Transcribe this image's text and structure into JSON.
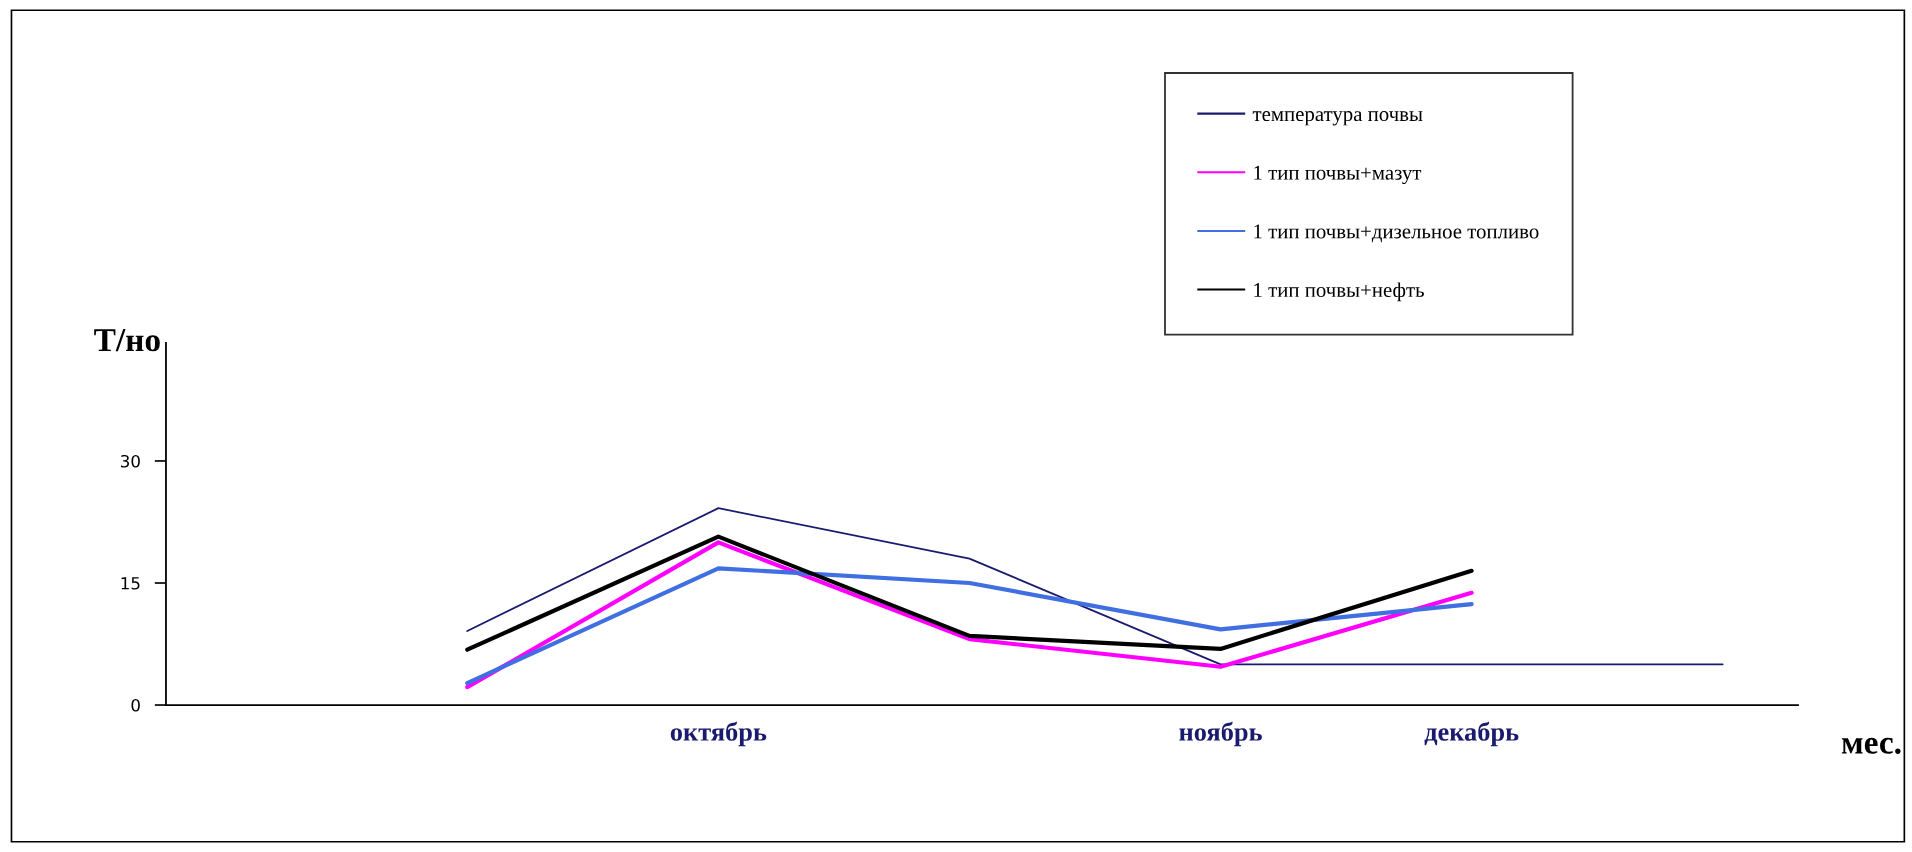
{
  "chart_data": {
    "type": "line",
    "xlabel": "мес.",
    "ylabel": "Т/но",
    "categories": [
      null,
      "октябрь",
      null,
      "ноябрь",
      "декабрь",
      null
    ],
    "ylim": [
      0,
      44.5
    ],
    "yticks": [
      0,
      15,
      30
    ],
    "grid": false,
    "legend": "top right",
    "marker": "none",
    "line_style": "solid",
    "series": [
      {
        "name": "температура почвы",
        "color": "#1a1a6e",
        "values": [
          9.1,
          24.2,
          18.0,
          5.0,
          5.0,
          5.0
        ]
      },
      {
        "name": "1 тип почвы+мазут",
        "color": "#ff00ff",
        "values": [
          2.2,
          20.0,
          8.1,
          4.7,
          13.8,
          null
        ]
      },
      {
        "name": "1 тип почвы+дизельное топливо",
        "color": "#3f6fe0",
        "values": [
          2.7,
          16.8,
          15.0,
          9.3,
          12.4,
          null
        ]
      },
      {
        "name": "1 тип почвы+нефть",
        "color": "#000000",
        "values": [
          6.8,
          20.7,
          8.5,
          6.9,
          16.5,
          null
        ]
      }
    ]
  }
}
